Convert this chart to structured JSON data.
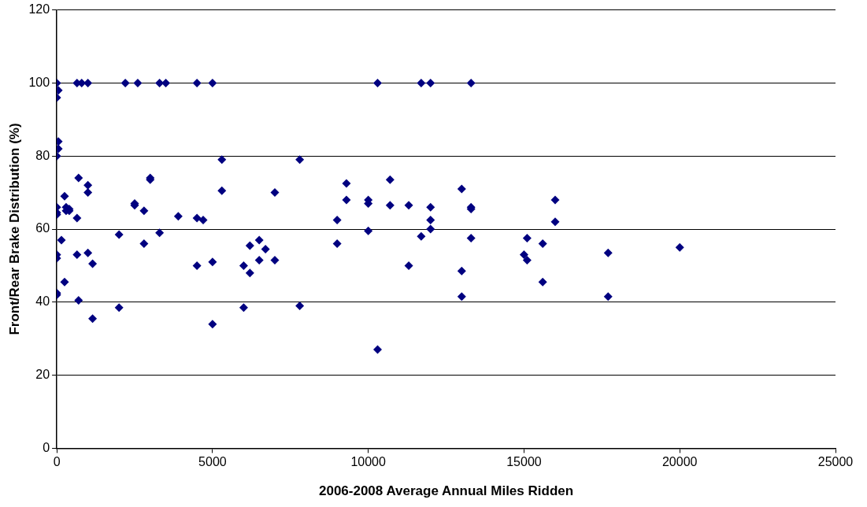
{
  "chart_data": {
    "type": "scatter",
    "xlabel": "2006-2008 Average Annual Miles Ridden",
    "ylabel": "Front/Rear Brake Distribution (%)",
    "xlim": [
      0,
      25000
    ],
    "xticks": [
      0,
      5000,
      10000,
      15000,
      20000,
      25000
    ],
    "ylim": [
      0,
      120
    ],
    "yticks": [
      0,
      20,
      40,
      60,
      80,
      100,
      120
    ],
    "grid": "y",
    "legend": false,
    "marker": "diamond",
    "series": [
      {
        "color": "#000080",
        "x": [
          0,
          50,
          0,
          50,
          50,
          0,
          0,
          0,
          0,
          0,
          0,
          0,
          0,
          150,
          250,
          250,
          300,
          300,
          400,
          400,
          650,
          800,
          1000,
          700,
          650,
          650,
          700,
          1000,
          1000,
          1000,
          1150,
          1150,
          2000,
          2000,
          2200,
          2600,
          2500,
          2500,
          2800,
          2800,
          3000,
          3000,
          3300,
          3500,
          3300,
          3900,
          4500,
          5000,
          4500,
          4700,
          4500,
          5000,
          5000,
          5300,
          5300,
          6000,
          6000,
          6200,
          6200,
          6500,
          6500,
          6700,
          7000,
          7000,
          7800,
          7800,
          9000,
          9000,
          9300,
          9300,
          10000,
          10000,
          10000,
          10300,
          10300,
          10700,
          10700,
          11300,
          11300,
          11700,
          11700,
          12000,
          12000,
          12000,
          12000,
          13000,
          13000,
          13000,
          13300,
          13300,
          13300,
          13300,
          15000,
          15100,
          15100,
          15600,
          15600,
          16000,
          16000,
          17700,
          17700,
          20000
        ],
        "values": [
          100,
          98,
          96,
          84,
          82,
          80,
          66,
          64,
          64.5,
          53,
          52,
          42,
          42.5,
          57,
          69,
          45.5,
          66,
          65,
          65.5,
          65,
          100,
          100,
          100,
          74,
          63,
          53,
          40.5,
          72,
          70,
          53.5,
          50.5,
          35.5,
          58.5,
          38.5,
          100,
          100,
          67,
          66.5,
          65,
          56,
          74,
          73.5,
          100,
          100,
          59,
          63.5,
          100,
          100,
          63,
          62.5,
          50,
          51,
          34,
          79,
          70.5,
          50,
          38.5,
          55.5,
          48,
          57,
          51.5,
          54.5,
          70,
          51.5,
          79,
          39,
          62.5,
          56,
          72.5,
          68,
          68,
          67,
          59.5,
          100,
          27,
          73.5,
          66.5,
          66.5,
          50,
          100,
          58,
          100,
          66,
          62.5,
          60,
          71,
          48.5,
          41.5,
          100,
          66,
          65.5,
          57.5,
          53,
          57.5,
          51.5,
          56,
          45.5,
          68,
          62,
          53.5,
          41.5,
          55
        ]
      }
    ]
  }
}
